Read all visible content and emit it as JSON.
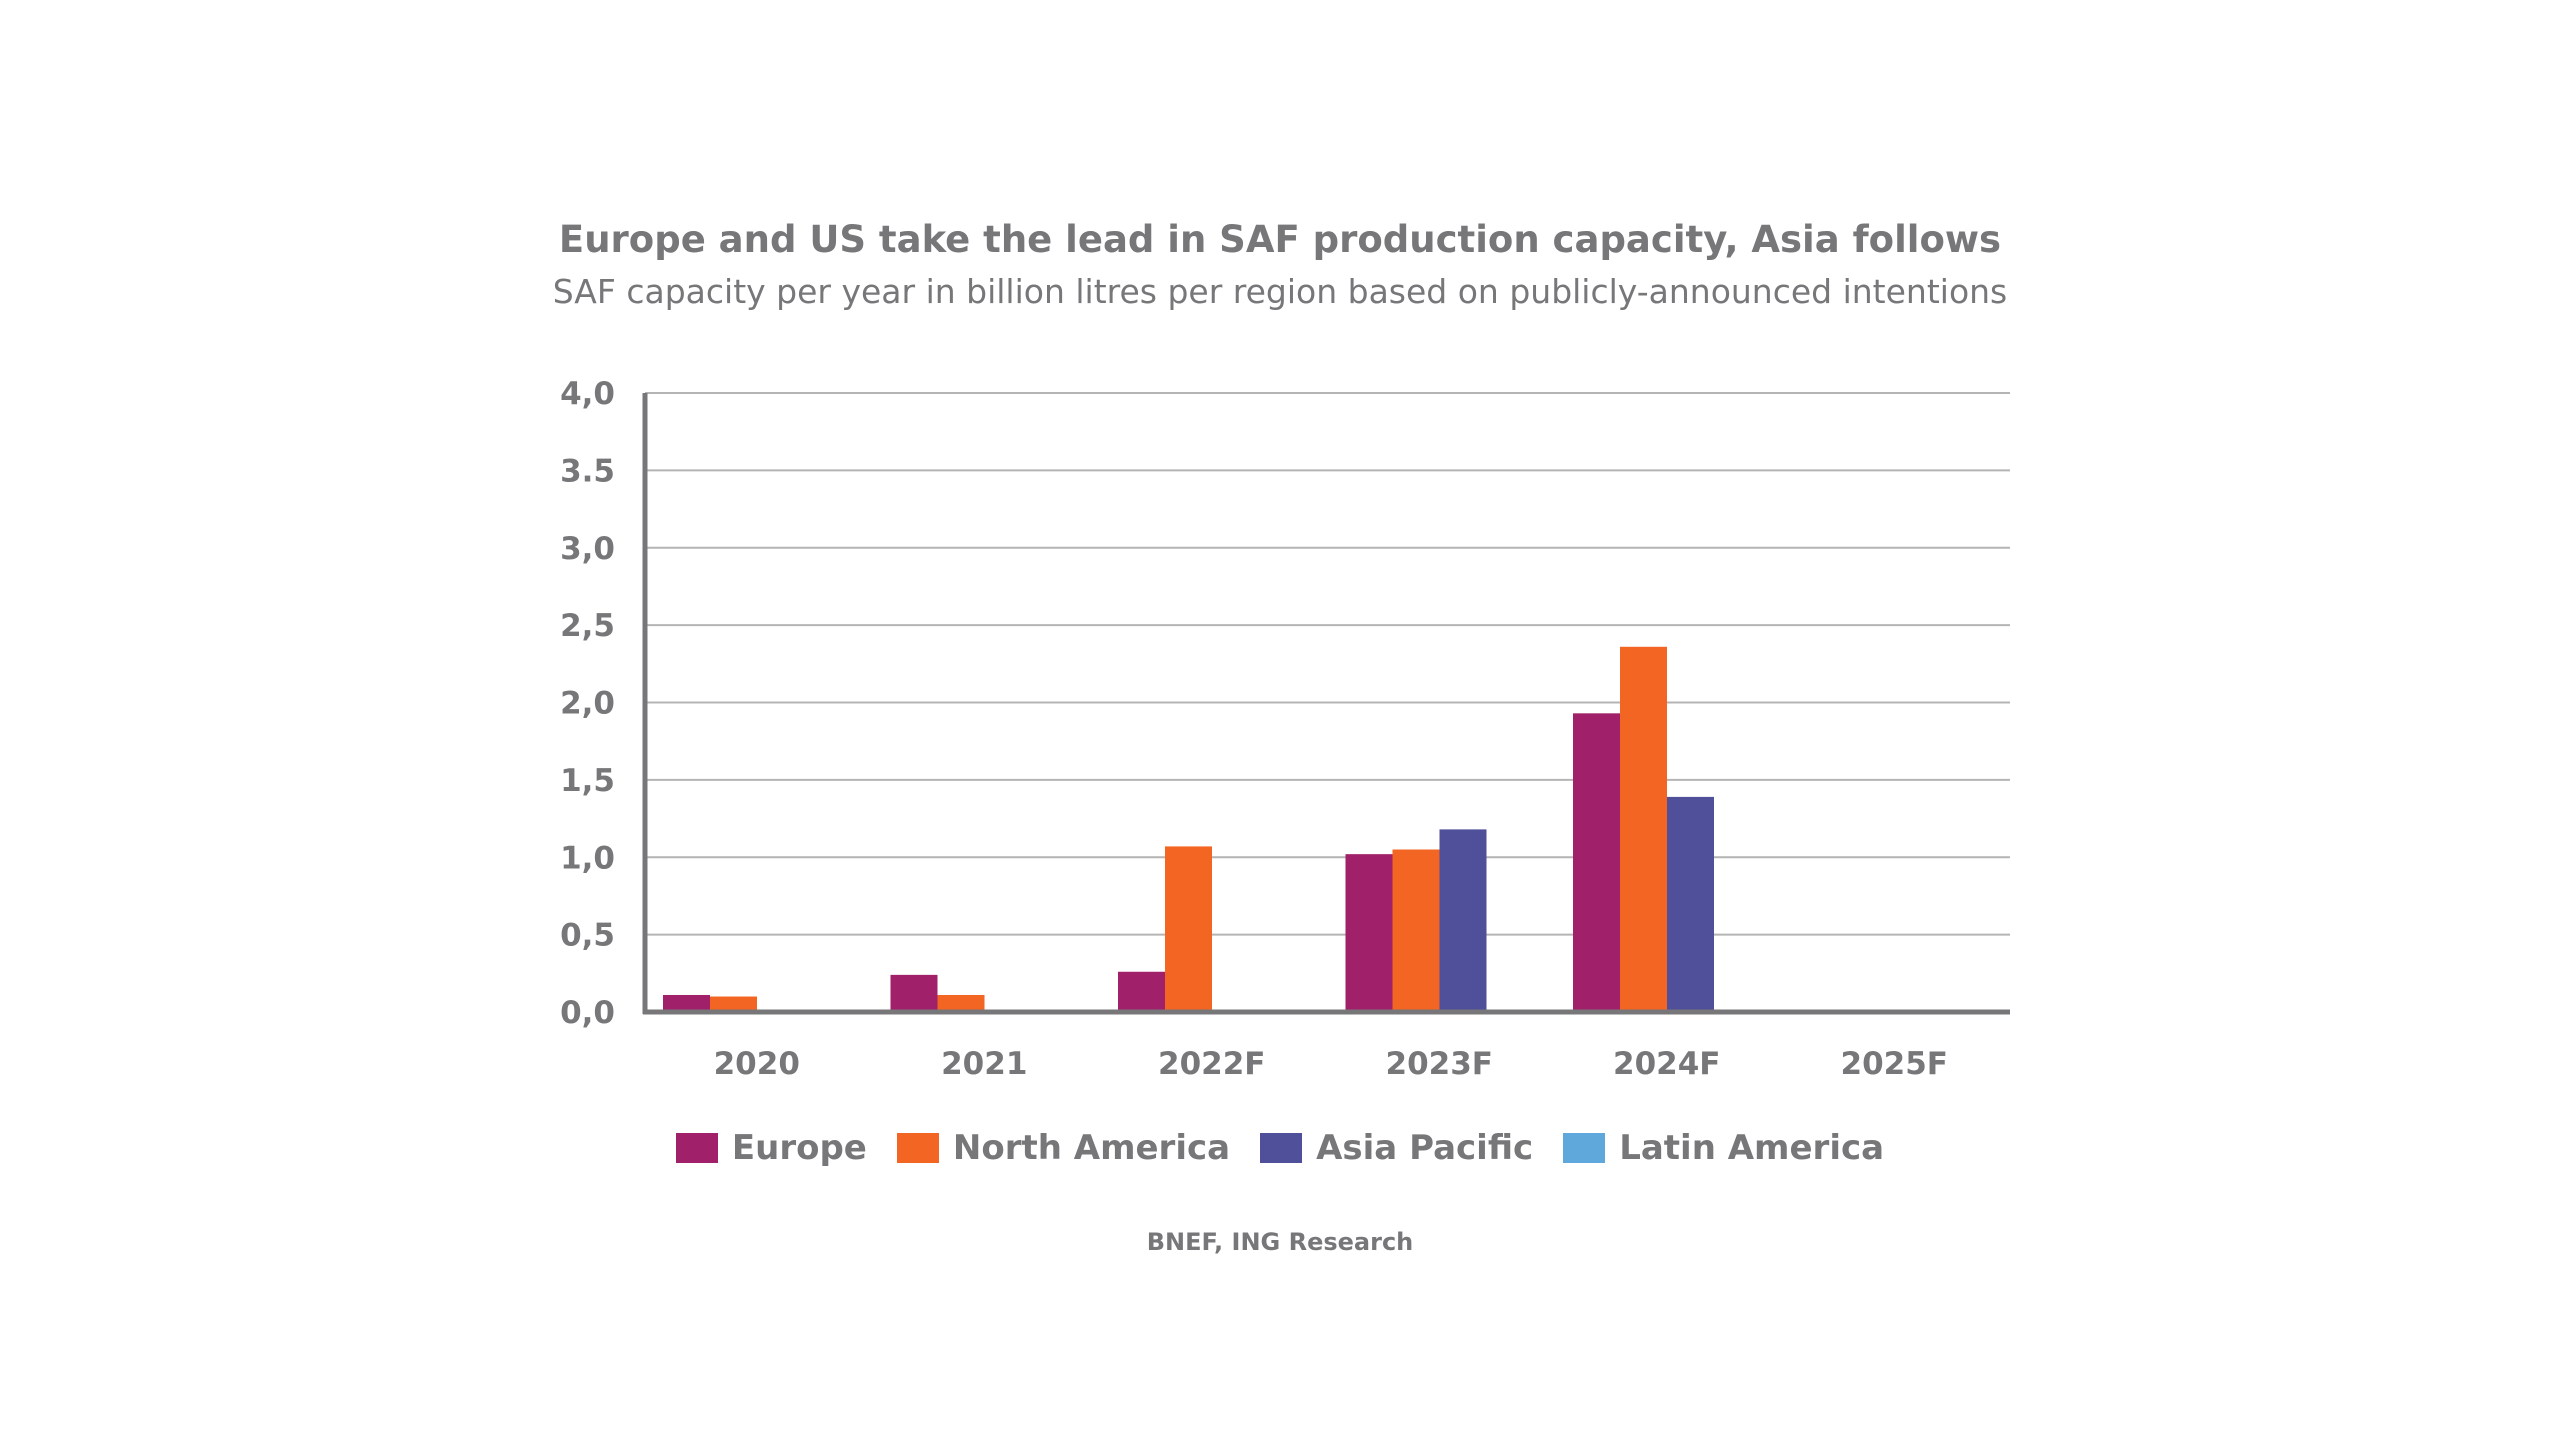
{
  "chart_data": {
    "type": "bar",
    "title": "Europe and US take the lead in SAF production capacity, Asia follows",
    "subtitle": "SAF capacity per year in billion litres per region based on publicly-announced intentions",
    "xlabel": "",
    "ylabel": "",
    "categories": [
      "2020",
      "2021",
      "2022F",
      "2023F",
      "2024F",
      "2025F"
    ],
    "ylim": [
      0,
      4
    ],
    "yticks": [
      "0,0",
      "0,5",
      "1,0",
      "1,5",
      "2,0",
      "2,5",
      "3,0",
      "3.5",
      "4,0"
    ],
    "ytick_values": [
      0,
      0.5,
      1.0,
      1.5,
      2.0,
      2.5,
      3.0,
      3.5,
      4.0
    ],
    "grid": true,
    "legend_position": "bottom",
    "series": [
      {
        "name": "Europe",
        "color": "#a0206a",
        "values": [
          0.11,
          0.24,
          0.26,
          1.02,
          1.93,
          0
        ]
      },
      {
        "name": "North America",
        "color": "#f26522",
        "values": [
          0.1,
          0.11,
          1.07,
          1.05,
          2.36,
          0
        ]
      },
      {
        "name": "Asia Pacific",
        "color": "#4f4f9a",
        "values": [
          0,
          0,
          0,
          1.18,
          1.39,
          0
        ]
      },
      {
        "name": "Latin America",
        "color": "#5ea8dc",
        "values": [
          0,
          0,
          0,
          0,
          0,
          0
        ]
      }
    ],
    "source": "BNEF, ING Research"
  }
}
